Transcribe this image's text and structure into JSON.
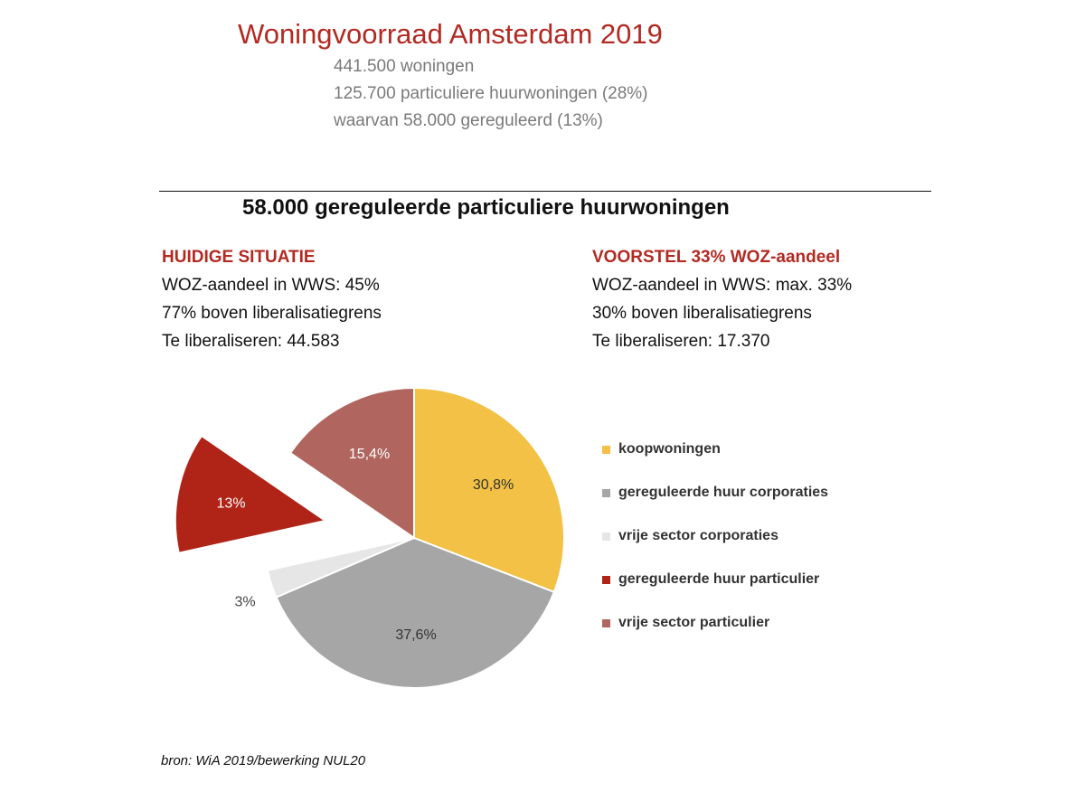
{
  "header": {
    "title": "Woningvoorraad Amsterdam 2019",
    "lines": [
      "441.500 woningen",
      "125.700 particuliere huurwoningen (28%)",
      "waarvan 58.000 gereguleerd (13%)"
    ]
  },
  "left_column": {
    "heading": "HUIDIGE SITUATIE",
    "lines": [
      "WOZ-aandeel in WWS: 45%",
      "77% boven liberalisatiegrens",
      "Te liberaliseren: 44.583"
    ]
  },
  "right_column": {
    "heading": "VOORSTEL 33% WOZ-aandeel",
    "lines": [
      "WOZ-aandeel in WWS: max. 33%",
      "30% boven liberalisatiegrens",
      "Te liberaliseren: 17.370"
    ]
  },
  "source": "bron: WiA 2019/bewerking NUL20",
  "chart_data": {
    "type": "pie",
    "title": "58.000 gereguleerde particuliere huurwoningen",
    "slices": [
      {
        "name": "koopwoningen",
        "value": 30.8,
        "label": "30,8%",
        "color": "#f2c145",
        "exploded": false
      },
      {
        "name": "gereguleerde huur corporaties",
        "value": 37.6,
        "label": "37,6%",
        "color": "#a6a6a6",
        "exploded": false
      },
      {
        "name": "vrije sector corporaties",
        "value": 3.0,
        "label": "3%",
        "color": "#e6e6e6",
        "exploded": false
      },
      {
        "name": "gereguleerde huur particulier",
        "value": 13.0,
        "label": "13%",
        "color": "#b02418",
        "exploded": true
      },
      {
        "name": "vrije sector particulier",
        "value": 15.4,
        "label": "15,4%",
        "color": "#b0665e",
        "exploded": false
      }
    ],
    "legend_position": "right"
  }
}
